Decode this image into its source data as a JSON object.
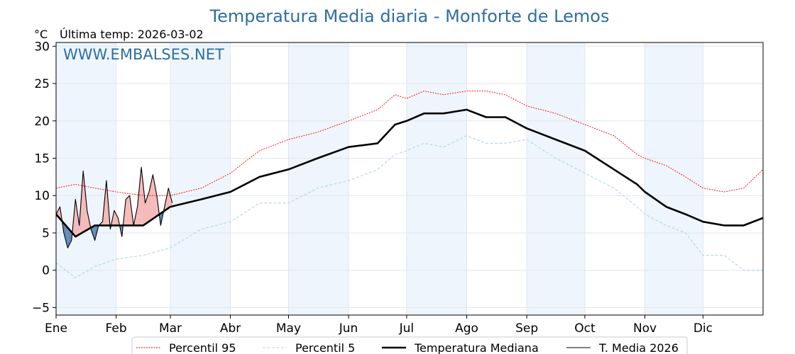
{
  "chart_data": {
    "type": "line",
    "title": "Temperatura Media diaria - Monforte de Lemos",
    "unit": "°C",
    "last_update": "Última temp: 2026-03-02",
    "watermark": "WWW.EMBALSES.NET",
    "ylim": [
      -6,
      30.5
    ],
    "yticks": [
      -5,
      0,
      5,
      10,
      15,
      20,
      25,
      30
    ],
    "ytick_labels": [
      "−5",
      "0",
      "5",
      "10",
      "15",
      "20",
      "25",
      "30"
    ],
    "xlim": [
      0,
      365
    ],
    "months": [
      {
        "label": "Ene",
        "start": 0
      },
      {
        "label": "Feb",
        "start": 31
      },
      {
        "label": "Mar",
        "start": 59
      },
      {
        "label": "Abr",
        "start": 90
      },
      {
        "label": "May",
        "start": 120
      },
      {
        "label": "Jun",
        "start": 151
      },
      {
        "label": "Jul",
        "start": 181
      },
      {
        "label": "Ago",
        "start": 212
      },
      {
        "label": "Sep",
        "start": 243
      },
      {
        "label": "Oct",
        "start": 273
      },
      {
        "label": "Nov",
        "start": 304
      },
      {
        "label": "Dic",
        "start": 334
      }
    ],
    "grid": true,
    "legend_position": "bottom",
    "series": [
      {
        "name": "Percentil 95",
        "color": "#ff0000",
        "style": "dotted",
        "x": [
          0,
          10,
          20,
          31,
          45,
          59,
          75,
          90,
          105,
          120,
          135,
          151,
          166,
          175,
          181,
          190,
          200,
          212,
          222,
          232,
          243,
          258,
          273,
          288,
          300,
          304,
          315,
          325,
          334,
          345,
          355,
          365
        ],
        "values": [
          11,
          11.5,
          11,
          10.5,
          10,
          10,
          11,
          13,
          16,
          17.5,
          18.5,
          20,
          21.5,
          23.5,
          23,
          24,
          23.5,
          24,
          24,
          23.5,
          22,
          21,
          19.5,
          18,
          15.5,
          15,
          14,
          12.5,
          11,
          10.5,
          11,
          13.5
        ]
      },
      {
        "name": "Percentil 5",
        "color": "#add8e6",
        "style": "dashed",
        "x": [
          0,
          10,
          20,
          31,
          45,
          59,
          75,
          90,
          105,
          120,
          135,
          151,
          166,
          175,
          181,
          190,
          200,
          212,
          222,
          232,
          243,
          258,
          273,
          288,
          300,
          304,
          315,
          325,
          334,
          345,
          355,
          365
        ],
        "values": [
          1,
          -1,
          0.5,
          1.5,
          2,
          3,
          5.5,
          6.5,
          9,
          9,
          11,
          12,
          13.5,
          15.5,
          16,
          17,
          16.5,
          18,
          17,
          17,
          17.5,
          15,
          13,
          11,
          8.5,
          7.5,
          6,
          5,
          2,
          2,
          0,
          0
        ]
      },
      {
        "name": "Temperatura Mediana",
        "color": "#000000",
        "style": "solid-thick",
        "x": [
          0,
          10,
          20,
          31,
          45,
          59,
          75,
          90,
          105,
          120,
          135,
          151,
          166,
          175,
          181,
          190,
          200,
          212,
          222,
          232,
          243,
          258,
          273,
          288,
          300,
          304,
          315,
          325,
          334,
          345,
          355,
          365
        ],
        "values": [
          7.5,
          4.5,
          6,
          6,
          6,
          8.5,
          9.5,
          10.5,
          12.5,
          13.5,
          15,
          16.5,
          17,
          19.5,
          20,
          21,
          21,
          21.5,
          20.5,
          20.5,
          19,
          17.5,
          16,
          13.5,
          11.5,
          10.5,
          8.5,
          7.5,
          6.5,
          6,
          6,
          7
        ]
      },
      {
        "name": "T. Media 2026",
        "color": "#000000",
        "style": "solid-thin",
        "x": [
          0,
          2,
          4,
          6,
          8,
          10,
          12,
          14,
          16,
          18,
          20,
          22,
          24,
          26,
          28,
          30,
          32,
          34,
          36,
          38,
          40,
          42,
          44,
          46,
          48,
          50,
          52,
          54,
          56,
          58,
          60
        ],
        "values": [
          7.5,
          8.5,
          5,
          3,
          4,
          9.5,
          6,
          13.3,
          8,
          5.5,
          4,
          6,
          6.5,
          12,
          5.5,
          8,
          7,
          4.5,
          9.5,
          10,
          6,
          8.5,
          13.8,
          9,
          10.5,
          12.8,
          10,
          6,
          8.5,
          11,
          9
        ]
      }
    ]
  }
}
